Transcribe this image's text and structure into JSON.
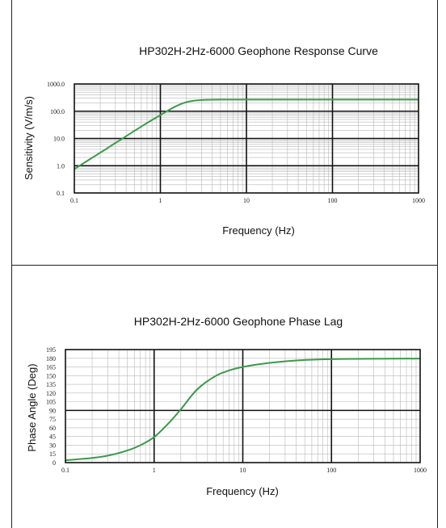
{
  "colors": {
    "series": "#3a9a4a",
    "grid_major": "#111111",
    "grid_minor": "#b8b8b8"
  },
  "chart_data": [
    {
      "type": "line",
      "title": "HP302H-2Hz-6000 Geophone Response Curve",
      "xlabel": "Frequency (Hz)",
      "ylabel": "Sensitivity (V/m/s)",
      "xscale": "log",
      "yscale": "log",
      "xlim": [
        0.1,
        1000
      ],
      "ylim": [
        0.1,
        1000
      ],
      "grid": true,
      "x_ticks": [
        "0.1",
        "1",
        "10",
        "100",
        "1000"
      ],
      "y_ticks": [
        "0.1",
        "1.0",
        "10.0",
        "100.0",
        "1000.0"
      ],
      "series": [
        {
          "x": [
            0.1,
            0.15,
            0.2,
            0.3,
            0.5,
            0.7,
            1,
            1.3,
            1.6,
            2,
            2.5,
            3,
            4,
            5,
            7,
            10,
            20,
            50,
            100,
            1000
          ],
          "values": [
            0.75,
            1.7,
            3.0,
            6.8,
            19,
            37,
            72,
            118,
            165,
            215,
            245,
            258,
            264,
            266,
            267,
            267,
            267,
            267,
            267,
            267
          ]
        }
      ]
    },
    {
      "type": "line",
      "title": "HP302H-2Hz-6000 Geophone Phase Lag",
      "xlabel": "Frequency (Hz)",
      "ylabel": "Phase Angle (Deg)",
      "xscale": "log",
      "yscale": "linear",
      "xlim": [
        0.1,
        1000
      ],
      "ylim": [
        0,
        195
      ],
      "grid": true,
      "x_ticks": [
        "0.1",
        "1",
        "10",
        "100",
        "1000"
      ],
      "y_ticks": [
        "0",
        "15",
        "30",
        "45",
        "60",
        "75",
        "90",
        "105",
        "120",
        "135",
        "150",
        "165",
        "180",
        "195"
      ],
      "y_tick_values": [
        0,
        15,
        30,
        45,
        60,
        75,
        90,
        105,
        120,
        135,
        150,
        165,
        180,
        195
      ],
      "y_major": [
        90
      ],
      "series": [
        {
          "x": [
            0.1,
            0.2,
            0.3,
            0.5,
            0.7,
            1,
            1.5,
            2,
            3,
            5,
            7,
            10,
            20,
            50,
            100,
            1000
          ],
          "values": [
            4,
            8,
            12,
            21,
            30,
            44,
            70,
            92,
            125,
            150,
            159,
            165,
            172,
            177,
            178.5,
            179.5
          ]
        }
      ]
    }
  ]
}
